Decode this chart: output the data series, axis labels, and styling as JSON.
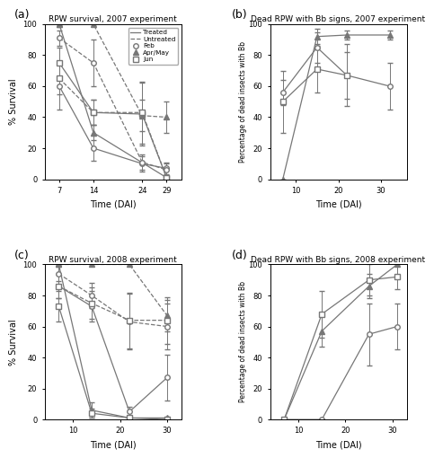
{
  "panel_a": {
    "title": "RPW survival, 2007 experiment",
    "xlabel": "Time (DAI)",
    "ylabel": "% Survival",
    "xticks": [
      7,
      14,
      24,
      29
    ],
    "xlim": [
      4,
      32
    ],
    "ylim": [
      0,
      100
    ],
    "treated_feb": {
      "x": [
        7,
        14,
        24,
        29
      ],
      "y": [
        60,
        20,
        10,
        7
      ],
      "yerr": [
        15,
        8,
        5,
        4
      ],
      "ls": "solid",
      "marker": "o",
      "filled": false
    },
    "treated_aprMay": {
      "x": [
        7,
        14,
        29
      ],
      "y": [
        100,
        30,
        1
      ],
      "yerr": [
        0,
        5,
        1
      ],
      "ls": "solid",
      "marker": "^",
      "filled": true
    },
    "treated_jun": {
      "x": [
        7,
        14,
        24,
        29
      ],
      "y": [
        75,
        43,
        42,
        1
      ],
      "yerr": [
        10,
        8,
        20,
        1
      ],
      "ls": "solid",
      "marker": "s",
      "filled": false
    },
    "untreated_feb": {
      "x": [
        7,
        14,
        24,
        29
      ],
      "y": [
        91,
        75,
        11,
        6
      ],
      "yerr": [
        5,
        15,
        5,
        4
      ],
      "ls": "dashed",
      "marker": "o",
      "filled": false
    },
    "untreated_aprMay": {
      "x": [
        7,
        14,
        24,
        29
      ],
      "y": [
        100,
        100,
        41,
        40
      ],
      "yerr": [
        0,
        0,
        10,
        10
      ],
      "ls": "dashed",
      "marker": "^",
      "filled": true
    },
    "untreated_jun": {
      "x": [
        7,
        14,
        24,
        29
      ],
      "y": [
        65,
        43,
        43,
        1
      ],
      "yerr": [
        10,
        8,
        20,
        1
      ],
      "ls": "dashed",
      "marker": "s",
      "filled": false
    }
  },
  "panel_b": {
    "title": "Dead RPW with Bb signs, 2007 experiment",
    "xlabel": "Time (DAI)",
    "ylabel": "Percentage of dead insects with Bb",
    "xticks": [
      10,
      20,
      30
    ],
    "xlim": [
      4,
      36
    ],
    "ylim": [
      0,
      100
    ],
    "feb": {
      "x": [
        7,
        15,
        22,
        32
      ],
      "y": [
        56,
        85,
        67,
        60
      ],
      "yerr": [
        8,
        10,
        20,
        15
      ],
      "marker": "o",
      "filled": false
    },
    "aprMay": {
      "x": [
        7,
        15,
        22,
        32
      ],
      "y": [
        0,
        92,
        93,
        93
      ],
      "yerr": [
        0,
        5,
        3,
        3
      ],
      "marker": "^",
      "filled": true
    },
    "jun": {
      "x": [
        7,
        15,
        22
      ],
      "y": [
        50,
        71,
        67
      ],
      "yerr": [
        20,
        15,
        15
      ],
      "marker": "s",
      "filled": false
    }
  },
  "panel_c": {
    "title": "RPW survival, 2008 experiment",
    "xlabel": "Time (DAI)",
    "ylabel": "% Survival",
    "xticks": [
      10,
      20,
      30
    ],
    "xlim": [
      4,
      33
    ],
    "ylim": [
      0,
      100
    ],
    "treated_feb": {
      "x": [
        7,
        14,
        22,
        30
      ],
      "y": [
        86,
        73,
        5,
        27
      ],
      "yerr": [
        8,
        10,
        3,
        15
      ],
      "ls": "solid",
      "marker": "o",
      "filled": false
    },
    "treated_aprMay": {
      "x": [
        7,
        14,
        22,
        30
      ],
      "y": [
        100,
        6,
        1,
        1
      ],
      "yerr": [
        0,
        5,
        1,
        1
      ],
      "ls": "solid",
      "marker": "^",
      "filled": true
    },
    "treated_jun": {
      "x": [
        7,
        14,
        22,
        30
      ],
      "y": [
        73,
        4,
        1,
        0
      ],
      "yerr": [
        10,
        3,
        1,
        0
      ],
      "ls": "solid",
      "marker": "s",
      "filled": false
    },
    "untreated_feb": {
      "x": [
        7,
        14,
        22,
        30
      ],
      "y": [
        94,
        80,
        63,
        60
      ],
      "yerr": [
        5,
        8,
        18,
        15
      ],
      "ls": "dashed",
      "marker": "o",
      "filled": false
    },
    "untreated_aprMay": {
      "x": [
        7,
        14,
        22,
        30
      ],
      "y": [
        100,
        100,
        100,
        67
      ],
      "yerr": [
        0,
        0,
        0,
        10
      ],
      "ls": "dashed",
      "marker": "^",
      "filled": true
    },
    "untreated_jun": {
      "x": [
        7,
        14,
        22,
        30
      ],
      "y": [
        86,
        75,
        64,
        64
      ],
      "yerr": [
        8,
        10,
        18,
        15
      ],
      "ls": "dashed",
      "marker": "s",
      "filled": false
    }
  },
  "panel_d": {
    "title": "Dead RPW with Bb signs, 2008 experiment",
    "xlabel": "Time (DAI)",
    "ylabel": "Percentage of dead insects with Bb",
    "xticks": [
      10,
      20,
      30
    ],
    "xlim": [
      4,
      33
    ],
    "ylim": [
      0,
      100
    ],
    "feb": {
      "x": [
        7,
        15,
        25,
        31
      ],
      "y": [
        0,
        0,
        55,
        60
      ],
      "yerr": [
        0,
        0,
        20,
        15
      ],
      "marker": "o",
      "filled": false
    },
    "aprMay": {
      "x": [
        7,
        15,
        25,
        31
      ],
      "y": [
        0,
        57,
        86,
        100
      ],
      "yerr": [
        0,
        10,
        8,
        0
      ],
      "marker": "^",
      "filled": true
    },
    "jun": {
      "x": [
        7,
        15,
        25,
        31
      ],
      "y": [
        0,
        68,
        90,
        92
      ],
      "yerr": [
        0,
        15,
        10,
        8
      ],
      "marker": "s",
      "filled": false
    }
  }
}
